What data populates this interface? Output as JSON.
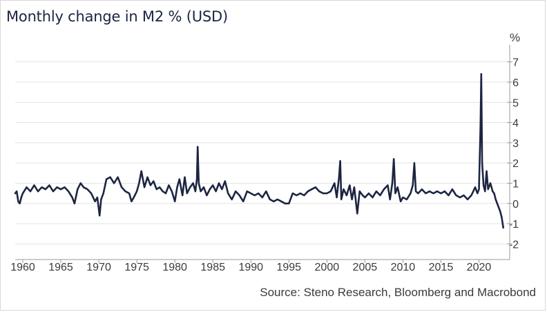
{
  "chart_data": {
    "type": "line",
    "title": "Monthly change in M2 % (USD)",
    "unit_label": "%",
    "source": "Source: Steno Research, Bloomberg and Macrobond",
    "xlim": [
      1959,
      2023.5
    ],
    "ylim": [
      -2.5,
      7.5
    ],
    "y_ticks": [
      7,
      6,
      5,
      4,
      3,
      2,
      1,
      0,
      -1,
      -2
    ],
    "x_ticks": [
      1960,
      1965,
      1970,
      1975,
      1980,
      1985,
      1990,
      1995,
      2000,
      2005,
      2010,
      2015,
      2020
    ],
    "grid": "horizontal",
    "series": [
      {
        "name": "Monthly change in M2 %",
        "color": "#1c2541",
        "points": [
          [
            1959.0,
            0.5
          ],
          [
            1959.2,
            0.6
          ],
          [
            1959.4,
            0.1
          ],
          [
            1959.6,
            0.0
          ],
          [
            1959.8,
            0.3
          ],
          [
            1960.0,
            0.5
          ],
          [
            1960.5,
            0.8
          ],
          [
            1961.0,
            0.6
          ],
          [
            1961.5,
            0.9
          ],
          [
            1962.0,
            0.6
          ],
          [
            1962.5,
            0.8
          ],
          [
            1963.0,
            0.7
          ],
          [
            1963.5,
            0.9
          ],
          [
            1964.0,
            0.6
          ],
          [
            1964.5,
            0.8
          ],
          [
            1965.0,
            0.7
          ],
          [
            1965.5,
            0.8
          ],
          [
            1966.0,
            0.6
          ],
          [
            1966.5,
            0.3
          ],
          [
            1966.8,
            0.0
          ],
          [
            1967.2,
            0.7
          ],
          [
            1967.6,
            1.0
          ],
          [
            1968.0,
            0.8
          ],
          [
            1968.5,
            0.7
          ],
          [
            1969.0,
            0.5
          ],
          [
            1969.5,
            0.1
          ],
          [
            1969.8,
            0.3
          ],
          [
            1970.1,
            -0.6
          ],
          [
            1970.3,
            0.2
          ],
          [
            1970.6,
            0.5
          ],
          [
            1971.0,
            1.2
          ],
          [
            1971.5,
            1.3
          ],
          [
            1972.0,
            1.0
          ],
          [
            1972.5,
            1.3
          ],
          [
            1973.0,
            0.8
          ],
          [
            1973.5,
            0.6
          ],
          [
            1974.0,
            0.5
          ],
          [
            1974.3,
            0.1
          ],
          [
            1974.6,
            0.3
          ],
          [
            1975.0,
            0.6
          ],
          [
            1975.3,
            1.0
          ],
          [
            1975.6,
            1.6
          ],
          [
            1976.0,
            0.8
          ],
          [
            1976.4,
            1.3
          ],
          [
            1976.8,
            0.9
          ],
          [
            1977.2,
            1.1
          ],
          [
            1977.6,
            0.7
          ],
          [
            1978.0,
            0.8
          ],
          [
            1978.4,
            0.6
          ],
          [
            1978.8,
            0.5
          ],
          [
            1979.2,
            0.9
          ],
          [
            1979.6,
            0.6
          ],
          [
            1980.0,
            0.1
          ],
          [
            1980.3,
            0.8
          ],
          [
            1980.6,
            1.2
          ],
          [
            1981.0,
            0.4
          ],
          [
            1981.3,
            1.3
          ],
          [
            1981.6,
            0.5
          ],
          [
            1982.0,
            0.8
          ],
          [
            1982.4,
            1.0
          ],
          [
            1982.7,
            0.6
          ],
          [
            1982.9,
            1.2
          ],
          [
            1983.0,
            2.8
          ],
          [
            1983.15,
            1.0
          ],
          [
            1983.4,
            0.6
          ],
          [
            1983.8,
            0.8
          ],
          [
            1984.2,
            0.4
          ],
          [
            1984.6,
            0.7
          ],
          [
            1985.0,
            0.9
          ],
          [
            1985.4,
            0.6
          ],
          [
            1985.8,
            1.0
          ],
          [
            1986.2,
            0.7
          ],
          [
            1986.6,
            1.1
          ],
          [
            1987.0,
            0.5
          ],
          [
            1987.5,
            0.2
          ],
          [
            1988.0,
            0.6
          ],
          [
            1988.5,
            0.4
          ],
          [
            1989.0,
            0.1
          ],
          [
            1989.5,
            0.6
          ],
          [
            1990.0,
            0.5
          ],
          [
            1990.5,
            0.4
          ],
          [
            1991.0,
            0.5
          ],
          [
            1991.5,
            0.3
          ],
          [
            1992.0,
            0.6
          ],
          [
            1992.5,
            0.2
          ],
          [
            1993.0,
            0.1
          ],
          [
            1993.5,
            0.2
          ],
          [
            1994.0,
            0.1
          ],
          [
            1994.5,
            0.0
          ],
          [
            1995.0,
            0.0
          ],
          [
            1995.5,
            0.5
          ],
          [
            1996.0,
            0.4
          ],
          [
            1996.5,
            0.5
          ],
          [
            1997.0,
            0.4
          ],
          [
            1997.5,
            0.6
          ],
          [
            1998.0,
            0.7
          ],
          [
            1998.5,
            0.8
          ],
          [
            1999.0,
            0.6
          ],
          [
            1999.5,
            0.5
          ],
          [
            2000.0,
            0.5
          ],
          [
            2000.5,
            0.6
          ],
          [
            2001.0,
            1.0
          ],
          [
            2001.3,
            0.3
          ],
          [
            2001.6,
            1.3
          ],
          [
            2001.75,
            2.1
          ],
          [
            2001.9,
            0.2
          ],
          [
            2002.2,
            0.7
          ],
          [
            2002.6,
            0.4
          ],
          [
            2003.0,
            0.9
          ],
          [
            2003.3,
            0.2
          ],
          [
            2003.6,
            0.8
          ],
          [
            2004.0,
            -0.5
          ],
          [
            2004.3,
            0.6
          ],
          [
            2004.7,
            0.4
          ],
          [
            2005.0,
            0.3
          ],
          [
            2005.5,
            0.5
          ],
          [
            2006.0,
            0.3
          ],
          [
            2006.5,
            0.6
          ],
          [
            2007.0,
            0.4
          ],
          [
            2007.5,
            0.7
          ],
          [
            2008.0,
            0.9
          ],
          [
            2008.3,
            0.2
          ],
          [
            2008.6,
            1.0
          ],
          [
            2008.8,
            2.2
          ],
          [
            2009.0,
            0.5
          ],
          [
            2009.3,
            0.8
          ],
          [
            2009.7,
            0.1
          ],
          [
            2010.0,
            0.3
          ],
          [
            2010.5,
            0.2
          ],
          [
            2011.0,
            0.5
          ],
          [
            2011.3,
            0.9
          ],
          [
            2011.5,
            2.0
          ],
          [
            2011.7,
            0.6
          ],
          [
            2012.0,
            0.5
          ],
          [
            2012.5,
            0.7
          ],
          [
            2013.0,
            0.5
          ],
          [
            2013.5,
            0.6
          ],
          [
            2014.0,
            0.5
          ],
          [
            2014.5,
            0.6
          ],
          [
            2015.0,
            0.5
          ],
          [
            2015.5,
            0.6
          ],
          [
            2016.0,
            0.4
          ],
          [
            2016.5,
            0.7
          ],
          [
            2017.0,
            0.4
          ],
          [
            2017.5,
            0.3
          ],
          [
            2018.0,
            0.4
          ],
          [
            2018.5,
            0.2
          ],
          [
            2019.0,
            0.4
          ],
          [
            2019.5,
            0.8
          ],
          [
            2019.8,
            0.5
          ],
          [
            2020.0,
            0.7
          ],
          [
            2020.2,
            3.8
          ],
          [
            2020.3,
            6.4
          ],
          [
            2020.42,
            2.0
          ],
          [
            2020.6,
            0.9
          ],
          [
            2020.8,
            0.6
          ],
          [
            2021.0,
            1.6
          ],
          [
            2021.2,
            0.7
          ],
          [
            2021.5,
            1.0
          ],
          [
            2021.8,
            0.6
          ],
          [
            2022.0,
            0.5
          ],
          [
            2022.2,
            0.2
          ],
          [
            2022.4,
            0.0
          ],
          [
            2022.6,
            -0.2
          ],
          [
            2022.8,
            -0.4
          ],
          [
            2023.0,
            -0.7
          ],
          [
            2023.2,
            -1.2
          ]
        ]
      }
    ]
  }
}
